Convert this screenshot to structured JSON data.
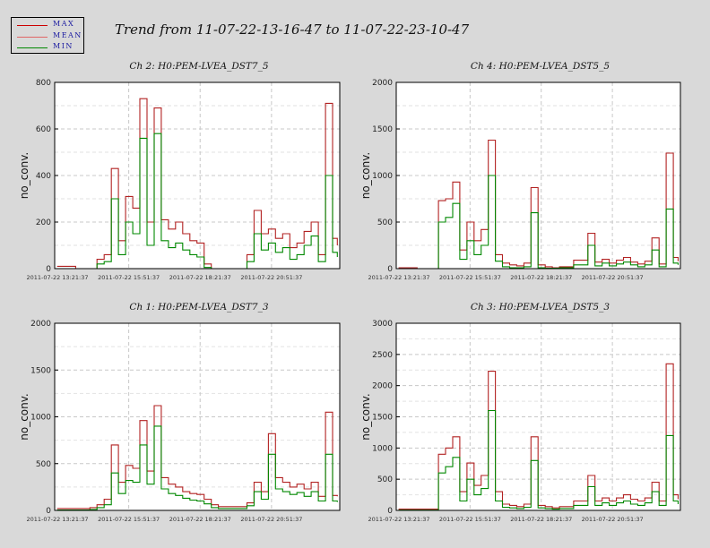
{
  "main_title": "Trend from 11-07-22-13-16-47 to 11-07-22-23-10-47",
  "legend": [
    {
      "label": "MAX",
      "color": "#cc0000"
    },
    {
      "label": "MEAN",
      "color": "#e06666"
    },
    {
      "label": "MIN",
      "color": "#008800"
    }
  ],
  "chart_data": [
    {
      "type": "line",
      "title": "Ch 2: H0:PEM-LVEA_DST7_5",
      "ylabel": "no_conv.",
      "ylim": [
        0,
        800
      ],
      "yticks": [
        0,
        200,
        400,
        600,
        800
      ],
      "xtick_labels": [
        "2011-07-22 13:21:37",
        "2011-07-22 15:51:37",
        "2011-07-22 18:21:37",
        "2011-07-22 20:51:37"
      ],
      "x": [
        "13:21",
        "14:00",
        "14:30",
        "14:45",
        "15:00",
        "15:15",
        "15:30",
        "15:45",
        "16:00",
        "16:15",
        "16:30",
        "16:45",
        "17:00",
        "17:15",
        "17:30",
        "17:45",
        "18:00",
        "18:15",
        "18:30",
        "18:45",
        "19:00",
        "19:30",
        "20:00",
        "20:15",
        "20:30",
        "20:45",
        "21:00",
        "21:15",
        "21:30",
        "21:45",
        "22:00",
        "22:15",
        "22:30",
        "22:45",
        "23:00",
        "23:10"
      ],
      "series": [
        {
          "name": "MAX",
          "values": [
            10,
            0,
            0,
            40,
            60,
            430,
            120,
            310,
            260,
            730,
            200,
            690,
            210,
            170,
            200,
            150,
            120,
            110,
            20,
            0,
            0,
            0,
            60,
            250,
            150,
            170,
            130,
            150,
            90,
            110,
            160,
            200,
            60,
            710,
            130,
            100
          ]
        },
        {
          "name": "MIN",
          "values": [
            0,
            0,
            0,
            20,
            30,
            300,
            60,
            200,
            150,
            560,
            100,
            580,
            120,
            90,
            110,
            80,
            60,
            50,
            5,
            0,
            0,
            0,
            30,
            150,
            80,
            110,
            70,
            90,
            40,
            60,
            100,
            140,
            30,
            400,
            70,
            50
          ]
        }
      ]
    },
    {
      "type": "line",
      "title": "Ch 4: H0:PEM-LVEA_DST5_5",
      "ylabel": "no_conv.",
      "ylim": [
        0,
        2000
      ],
      "yticks": [
        0,
        500,
        1000,
        1500,
        2000
      ],
      "xtick_labels": [
        "2011-07-22 13:21:37",
        "2011-07-22 15:51:37",
        "2011-07-22 18:21:37",
        "2011-07-22 20:51:37"
      ],
      "x": [
        "13:21",
        "14:00",
        "14:30",
        "14:45",
        "15:00",
        "15:15",
        "15:30",
        "15:45",
        "16:00",
        "16:15",
        "16:30",
        "16:45",
        "17:00",
        "17:15",
        "17:30",
        "17:45",
        "18:00",
        "18:15",
        "18:30",
        "18:45",
        "19:00",
        "19:30",
        "20:00",
        "20:15",
        "20:30",
        "20:45",
        "21:00",
        "21:15",
        "21:30",
        "21:45",
        "22:00",
        "22:15",
        "22:30",
        "22:45",
        "23:00",
        "23:10"
      ],
      "series": [
        {
          "name": "MAX",
          "values": [
            10,
            0,
            0,
            730,
            750,
            930,
            200,
            500,
            300,
            420,
            1380,
            150,
            60,
            40,
            30,
            60,
            870,
            40,
            20,
            10,
            20,
            90,
            380,
            70,
            100,
            60,
            90,
            120,
            70,
            50,
            80,
            330,
            50,
            1240,
            120,
            80
          ]
        },
        {
          "name": "MIN",
          "values": [
            0,
            0,
            0,
            500,
            550,
            700,
            100,
            300,
            150,
            250,
            1000,
            80,
            20,
            10,
            10,
            20,
            600,
            10,
            5,
            5,
            10,
            40,
            250,
            30,
            60,
            30,
            50,
            70,
            40,
            20,
            40,
            200,
            20,
            640,
            60,
            40
          ]
        }
      ]
    },
    {
      "type": "line",
      "title": "Ch 1: H0:PEM-LVEA_DST7_3",
      "ylabel": "no_conv.",
      "ylim": [
        0,
        2000
      ],
      "yticks": [
        0,
        500,
        1000,
        1500,
        2000
      ],
      "xtick_labels": [
        "2011-07-22 13:21:37",
        "2011-07-22 15:51:37",
        "2011-07-22 18:21:37",
        "2011-07-22 20:51:37"
      ],
      "x": [
        "13:21",
        "14:00",
        "14:30",
        "14:45",
        "15:00",
        "15:15",
        "15:30",
        "15:45",
        "16:00",
        "16:15",
        "16:30",
        "16:45",
        "17:00",
        "17:15",
        "17:30",
        "17:45",
        "18:00",
        "18:15",
        "18:30",
        "18:45",
        "19:00",
        "19:30",
        "20:00",
        "20:15",
        "20:30",
        "20:45",
        "21:00",
        "21:15",
        "21:30",
        "21:45",
        "22:00",
        "22:15",
        "22:30",
        "22:45",
        "23:00",
        "23:10"
      ],
      "series": [
        {
          "name": "MAX",
          "values": [
            20,
            20,
            30,
            60,
            120,
            700,
            300,
            480,
            450,
            960,
            420,
            1120,
            350,
            280,
            250,
            200,
            180,
            170,
            120,
            60,
            40,
            40,
            80,
            300,
            200,
            820,
            350,
            300,
            250,
            280,
            230,
            300,
            150,
            1050,
            160,
            150
          ]
        },
        {
          "name": "MIN",
          "values": [
            5,
            5,
            10,
            30,
            60,
            400,
            180,
            320,
            300,
            700,
            280,
            900,
            230,
            180,
            160,
            130,
            110,
            100,
            70,
            30,
            20,
            20,
            50,
            200,
            120,
            600,
            230,
            200,
            170,
            190,
            150,
            200,
            100,
            600,
            100,
            90
          ]
        }
      ]
    },
    {
      "type": "line",
      "title": "Ch 3: H0:PEM-LVEA_DST5_3",
      "ylabel": "no_conv.",
      "ylim": [
        0,
        3000
      ],
      "yticks": [
        0,
        500,
        1000,
        1500,
        2000,
        2500,
        3000
      ],
      "xtick_labels": [
        "2011-07-22 13:21:37",
        "2011-07-22 15:51:37",
        "2011-07-22 18:21:37",
        "2011-07-22 20:51:37"
      ],
      "x": [
        "13:21",
        "14:00",
        "14:30",
        "14:45",
        "15:00",
        "15:15",
        "15:30",
        "15:45",
        "16:00",
        "16:15",
        "16:30",
        "16:45",
        "17:00",
        "17:15",
        "17:30",
        "17:45",
        "18:00",
        "18:15",
        "18:30",
        "18:45",
        "19:00",
        "19:30",
        "20:00",
        "20:15",
        "20:30",
        "20:45",
        "21:00",
        "21:15",
        "21:30",
        "21:45",
        "22:00",
        "22:15",
        "22:30",
        "22:45",
        "23:00",
        "23:10"
      ],
      "series": [
        {
          "name": "MAX",
          "values": [
            20,
            20,
            20,
            900,
            1000,
            1180,
            300,
            760,
            400,
            560,
            2230,
            300,
            100,
            80,
            60,
            100,
            1180,
            80,
            60,
            40,
            60,
            150,
            560,
            150,
            200,
            150,
            200,
            250,
            180,
            150,
            200,
            450,
            150,
            2350,
            250,
            180
          ]
        },
        {
          "name": "MIN",
          "values": [
            5,
            5,
            5,
            600,
            700,
            850,
            150,
            500,
            250,
            350,
            1600,
            150,
            50,
            40,
            30,
            50,
            800,
            40,
            30,
            20,
            30,
            80,
            380,
            80,
            120,
            80,
            120,
            150,
            100,
            80,
            120,
            300,
            80,
            1200,
            150,
            100
          ]
        }
      ]
    }
  ]
}
